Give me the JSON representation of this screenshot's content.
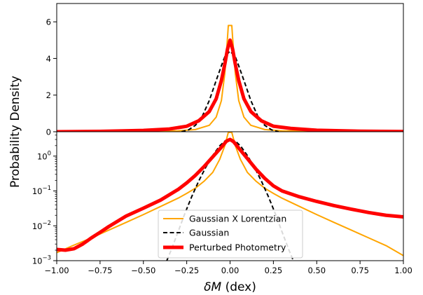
{
  "chart_data": [
    {
      "type": "line",
      "panel": "top",
      "scale": "linear",
      "xlim": [
        -1.0,
        1.0
      ],
      "ylim": [
        0,
        7
      ],
      "yticks": [
        0,
        2,
        4,
        6
      ],
      "ytick_labels": [
        "0",
        "2",
        "4",
        "6"
      ],
      "series": [
        {
          "name": "Gaussian X Lorentzian",
          "color": "#FFA500",
          "style": "solid",
          "x": [
            -1.0,
            -0.75,
            -0.5,
            -0.3,
            -0.2,
            -0.12,
            -0.08,
            -0.05,
            -0.03,
            -0.015,
            -0.01,
            0.01,
            0.015,
            0.03,
            0.05,
            0.08,
            0.12,
            0.2,
            0.3,
            0.5,
            0.75,
            1.0
          ],
          "y": [
            0.0,
            0.01,
            0.02,
            0.05,
            0.12,
            0.35,
            0.8,
            1.7,
            3.2,
            5.1,
            5.8,
            5.8,
            5.1,
            3.2,
            1.7,
            0.8,
            0.35,
            0.12,
            0.05,
            0.02,
            0.01,
            0.0
          ]
        },
        {
          "name": "Gaussian",
          "color": "#000000",
          "style": "dashed",
          "x": [
            -0.28,
            -0.24,
            -0.2,
            -0.16,
            -0.12,
            -0.08,
            -0.05,
            -0.03,
            0.0,
            0.03,
            0.05,
            0.08,
            0.12,
            0.16,
            0.2,
            0.24,
            0.28
          ],
          "y": [
            0.0,
            0.1,
            0.35,
            0.85,
            1.7,
            2.8,
            3.6,
            4.1,
            4.4,
            4.1,
            3.6,
            2.8,
            1.7,
            0.85,
            0.35,
            0.1,
            0.0
          ]
        },
        {
          "name": "Perturbed Photometry",
          "color": "#FF0000",
          "style": "solid",
          "x": [
            -1.0,
            -0.75,
            -0.5,
            -0.35,
            -0.25,
            -0.18,
            -0.12,
            -0.08,
            -0.05,
            -0.03,
            -0.015,
            0.0,
            0.015,
            0.03,
            0.05,
            0.08,
            0.12,
            0.18,
            0.25,
            0.35,
            0.5,
            0.75,
            1.0
          ],
          "y": [
            0.0,
            0.02,
            0.07,
            0.15,
            0.3,
            0.6,
            1.1,
            1.8,
            2.8,
            3.7,
            4.5,
            5.0,
            4.5,
            3.7,
            2.8,
            1.8,
            1.1,
            0.6,
            0.3,
            0.18,
            0.08,
            0.03,
            0.01
          ]
        }
      ]
    },
    {
      "type": "line",
      "panel": "bottom",
      "scale": "log",
      "xlim": [
        -1.0,
        1.0
      ],
      "ylim": [
        0.001,
        5
      ],
      "yticks": [
        0.001,
        0.01,
        0.1,
        1
      ],
      "ytick_labels": [
        {
          "base": "10",
          "exp": "−3"
        },
        {
          "base": "10",
          "exp": "−2"
        },
        {
          "base": "10",
          "exp": "−1"
        },
        {
          "base": "10",
          "exp": "0"
        }
      ],
      "xticks": [
        -1.0,
        -0.75,
        -0.5,
        -0.25,
        0.0,
        0.25,
        0.5,
        0.75,
        1.0
      ],
      "xtick_labels": [
        "−1.00",
        "−0.75",
        "−0.50",
        "−0.25",
        "0.00",
        "0.25",
        "0.50",
        "0.75",
        "1.00"
      ],
      "legend_position": "bottom-center",
      "series": [
        {
          "name": "Gaussian X Lorentzian",
          "color": "#FFA500",
          "style": "solid",
          "x": [
            -1.0,
            -0.9,
            -0.8,
            -0.7,
            -0.6,
            -0.5,
            -0.4,
            -0.3,
            -0.25,
            -0.2,
            -0.15,
            -0.1,
            -0.06,
            -0.03,
            -0.01,
            0.01,
            0.03,
            0.06,
            0.1,
            0.15,
            0.2,
            0.25,
            0.3,
            0.4,
            0.5,
            0.6,
            0.7,
            0.8,
            0.9,
            1.0
          ],
          "y": [
            0.0017,
            0.0028,
            0.0045,
            0.0075,
            0.0125,
            0.021,
            0.036,
            0.062,
            0.085,
            0.12,
            0.19,
            0.34,
            0.8,
            2.0,
            4.8,
            4.8,
            2.0,
            0.8,
            0.34,
            0.19,
            0.12,
            0.085,
            0.062,
            0.036,
            0.021,
            0.0125,
            0.0075,
            0.0045,
            0.0027,
            0.0014
          ]
        },
        {
          "name": "Gaussian",
          "color": "#000000",
          "style": "dashed",
          "x": [
            -0.365,
            -0.34,
            -0.3,
            -0.26,
            -0.22,
            -0.18,
            -0.14,
            -0.1,
            -0.06,
            -0.03,
            0.0,
            0.03,
            0.06,
            0.1,
            0.14,
            0.18,
            0.22,
            0.26,
            0.3,
            0.34,
            0.365
          ],
          "y": [
            0.001,
            0.002,
            0.0067,
            0.023,
            0.071,
            0.196,
            0.48,
            1.04,
            1.97,
            2.7,
            3.0,
            2.7,
            1.97,
            1.04,
            0.48,
            0.196,
            0.071,
            0.023,
            0.0067,
            0.002,
            0.001
          ]
        },
        {
          "name": "Perturbed Photometry",
          "color": "#FF0000",
          "style": "solid",
          "x": [
            -1.0,
            -0.95,
            -0.9,
            -0.85,
            -0.8,
            -0.75,
            -0.7,
            -0.6,
            -0.5,
            -0.4,
            -0.3,
            -0.25,
            -0.2,
            -0.15,
            -0.1,
            -0.05,
            -0.02,
            0.0,
            0.02,
            0.05,
            0.1,
            0.15,
            0.2,
            0.25,
            0.3,
            0.4,
            0.5,
            0.6,
            0.7,
            0.8,
            0.9,
            1.0
          ],
          "y": [
            0.0021,
            0.002,
            0.0022,
            0.003,
            0.0045,
            0.0065,
            0.0095,
            0.019,
            0.032,
            0.055,
            0.11,
            0.17,
            0.28,
            0.5,
            0.95,
            1.8,
            2.7,
            3.0,
            2.6,
            1.7,
            0.85,
            0.42,
            0.23,
            0.14,
            0.1,
            0.068,
            0.05,
            0.038,
            0.03,
            0.024,
            0.02,
            0.018
          ]
        }
      ]
    }
  ],
  "figure": {
    "ylabel": "Probability Density",
    "xlabel_main": "δM",
    "xlabel_unit": " (dex)",
    "legend_entries": [
      "Gaussian X Lorentzian",
      "Gaussian",
      "Perturbed Photometry"
    ]
  }
}
